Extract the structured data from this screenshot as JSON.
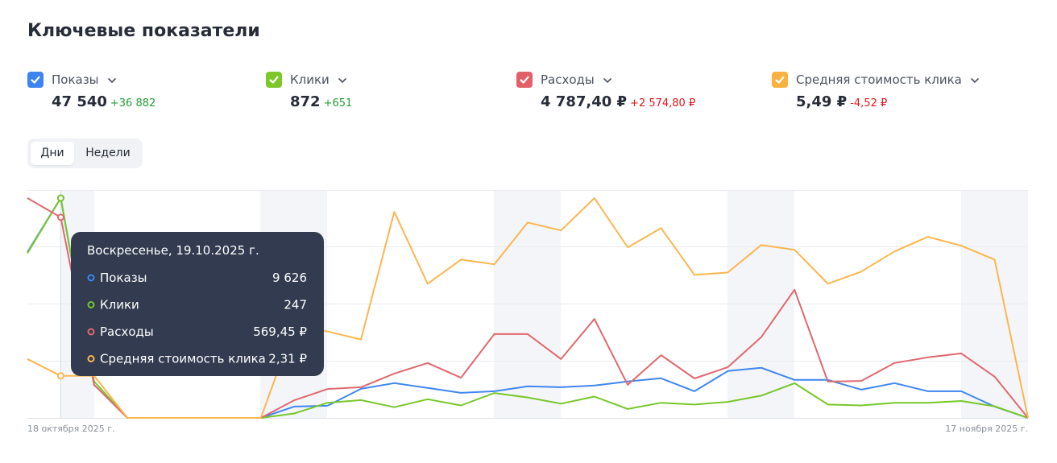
{
  "header": {
    "title": "Ключевые показатели"
  },
  "metrics": [
    {
      "label": "Показы",
      "value": "47 540",
      "delta": "+36 882",
      "color": "#3c84f1",
      "delta_color": "#21a038"
    },
    {
      "label": "Клики",
      "value": "872",
      "delta": "+651",
      "color": "#7dc72d",
      "delta_color": "#21a038"
    },
    {
      "label": "Расходы",
      "value": "4 787,40 ₽",
      "delta": "+2 574,80 ₽",
      "color": "#e35f68",
      "delta_color": "#e0161c"
    },
    {
      "label": "Средняя стоимость клика",
      "value": "5,49 ₽",
      "delta": "-4,52 ₽",
      "color": "#f9b23e",
      "delta_color": "#e0161c"
    }
  ],
  "tabs": [
    "Дни",
    "Недели"
  ],
  "chart_data": {
    "type": "line",
    "categories": [
      "18 октября 2025 г.",
      null,
      null,
      null,
      null,
      null,
      null,
      null,
      null,
      null,
      null,
      null,
      null,
      null,
      null,
      null,
      null,
      null,
      null,
      null,
      null,
      null,
      null,
      null,
      null,
      null,
      null,
      null,
      null,
      null,
      "17 ноября 2025 г."
    ],
    "series": [
      {
        "name": "Показы",
        "color": "#3f86f0",
        "values": [
          7259,
          9626,
          1450,
          0,
          0,
          0,
          0,
          0,
          496,
          531,
          1274,
          1522,
          1310,
          1097,
          1168,
          1381,
          1345,
          1416,
          1593,
          1735,
          1168,
          2053,
          2195,
          1664,
          1664,
          1239,
          1522,
          1168,
          1168,
          496,
          0
        ]
      },
      {
        "name": "Клики",
        "color": "#77c72a",
        "values": [
          185,
          247,
          41,
          0,
          0,
          0,
          0,
          0,
          5,
          17,
          20,
          12,
          21,
          14,
          28,
          23,
          16,
          24,
          10,
          17,
          15,
          18,
          25,
          39,
          15,
          14,
          17,
          17,
          19,
          13,
          0
        ]
      },
      {
        "name": "Расходы",
        "color": "#e0686e",
        "values": [
          624,
          569.45,
          94,
          0,
          0,
          0,
          0,
          0,
          50,
          82,
          87,
          126,
          156,
          114,
          238,
          238,
          167,
          281,
          94,
          178,
          112,
          144,
          229,
          364,
          103,
          105,
          156,
          172,
          183,
          117,
          0
        ]
      },
      {
        "name": "Средняя стоимость клика",
        "color": "#fbb64f",
        "values": [
          3.24,
          2.31,
          2.31,
          0,
          0,
          0,
          0,
          0,
          5.06,
          4.75,
          4.31,
          11.32,
          7.37,
          8.7,
          8.44,
          10.74,
          10.3,
          12.08,
          9.37,
          10.43,
          7.86,
          7.99,
          9.5,
          9.24,
          7.37,
          8.04,
          9.15,
          9.95,
          9.46,
          8.7,
          0
        ]
      }
    ],
    "hover_index": 1,
    "tooltip": {
      "title": "Воскресенье, 19.10.2025 г.",
      "values": [
        "9 626",
        "247",
        "569,45 ₽",
        "2,31 ₽"
      ]
    }
  }
}
